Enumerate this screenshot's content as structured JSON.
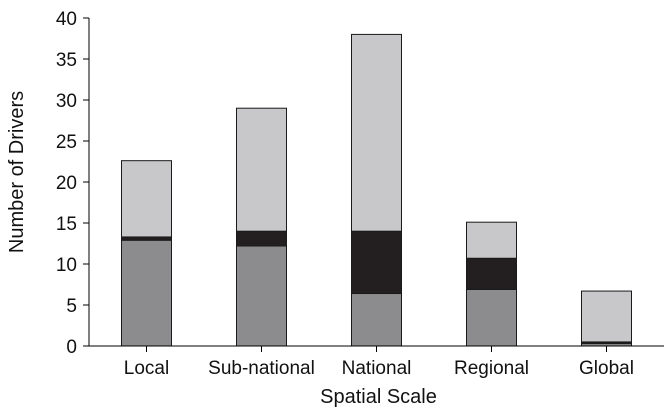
{
  "chart_data": {
    "type": "bar",
    "stacked": true,
    "title": "",
    "xlabel": "Spatial Scale",
    "ylabel": "Number of Drivers",
    "ylim": [
      0,
      40
    ],
    "yticks": [
      "0",
      "5",
      "10",
      "15",
      "20",
      "25",
      "30",
      "35",
      "40"
    ],
    "grid": false,
    "legend": "none",
    "categories": [
      "Local",
      "Sub-national",
      "National",
      "Regional",
      "Global"
    ],
    "series": [
      {
        "color": "#8c8c8e",
        "values": [
          12.9,
          12.2,
          6.4,
          6.9,
          0.3
        ]
      },
      {
        "color": "#231f20",
        "values": [
          0.4,
          1.8,
          7.6,
          3.8,
          0.2
        ]
      },
      {
        "color": "#c8c8ca",
        "values": [
          9.3,
          15.0,
          24.0,
          4.4,
          6.2
        ]
      }
    ]
  }
}
